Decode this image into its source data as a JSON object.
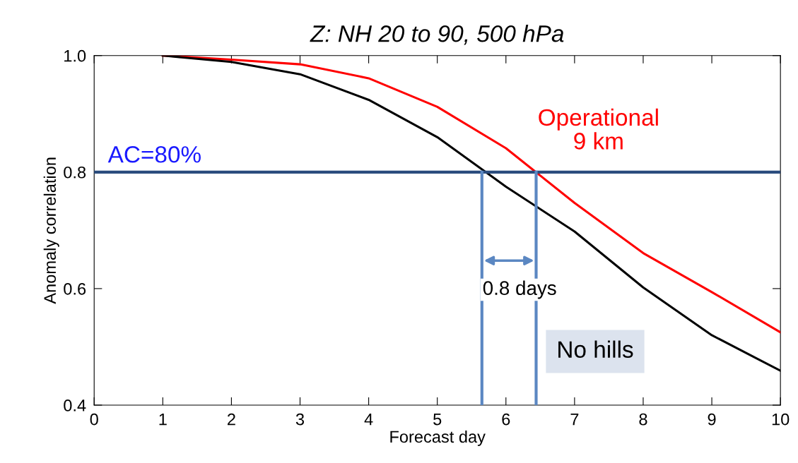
{
  "chart_data": {
    "type": "line",
    "title": "Z: NH 20 to 90, 500 hPa",
    "xlabel": "Forecast day",
    "ylabel": "Anomaly correlation",
    "x": [
      1,
      2,
      3,
      4,
      5,
      6,
      7,
      8,
      9,
      10
    ],
    "series": [
      {
        "name": "Operational\n9 km",
        "color": "#ff0000",
        "values": [
          1.0,
          0.993,
          0.985,
          0.961,
          0.912,
          0.841,
          0.747,
          0.661,
          0.594,
          0.525
        ]
      },
      {
        "name": "No hills",
        "color": "#000000",
        "values": [
          1.0,
          0.989,
          0.968,
          0.924,
          0.86,
          0.775,
          0.698,
          0.602,
          0.52,
          0.459
        ]
      }
    ],
    "xlim": [
      0,
      10
    ],
    "ylim": [
      0.4,
      1.0
    ],
    "xticks": [
      0,
      1,
      2,
      3,
      4,
      5,
      6,
      7,
      8,
      9,
      10
    ],
    "yticks": [
      {
        "value": 0.4,
        "label": "0.4"
      },
      {
        "value": 0.6,
        "label": "0.6"
      },
      {
        "value": 0.8,
        "label": "0.8"
      },
      {
        "value": 1.0,
        "label": "1.0"
      }
    ],
    "ref_lines": [
      {
        "axis": "y",
        "value": 0.8,
        "label": "AC=80%",
        "color": "#2b4c7e"
      },
      {
        "axis": "x",
        "value": 5.65,
        "color": "#5b87c2"
      },
      {
        "axis": "x",
        "value": 6.44,
        "color": "#5b87c2"
      }
    ],
    "annotations": [
      "0.8 days"
    ],
    "grid": false,
    "legend": false,
    "marker": "none",
    "line_style": "solid"
  }
}
